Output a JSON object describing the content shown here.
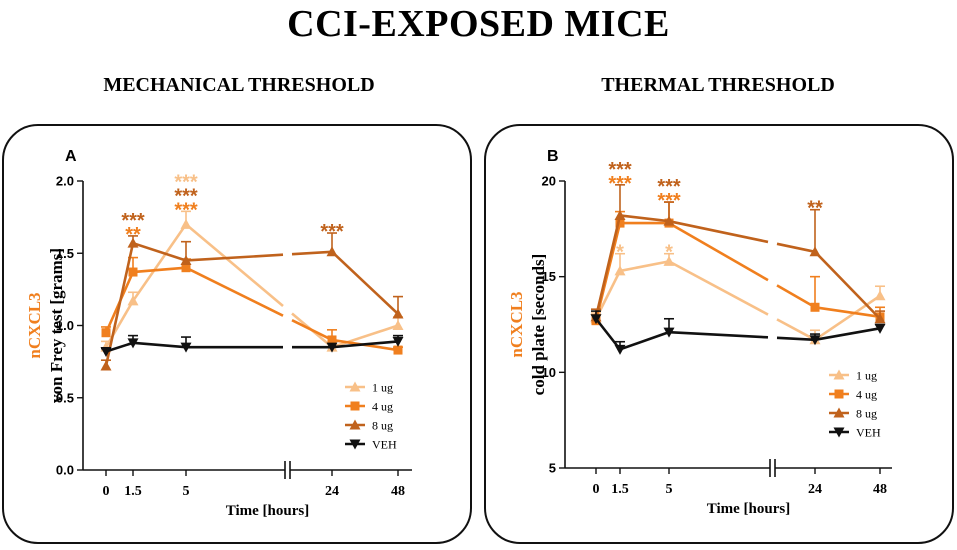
{
  "title": "CCI-EXPOSED MICE",
  "section_titles": [
    "MECHANICAL THRESHOLD",
    "THERMAL THRESHOLD"
  ],
  "colors": {
    "1 ug": "#f8c088",
    "4 ug": "#f07f1e",
    "8 ug": "#c0621c",
    "VEH": "#111111",
    "frame": "#111111"
  },
  "chart_data": [
    {
      "type": "line",
      "panel_label": "A",
      "title": "MECHANICAL THRESHOLD",
      "xlabel": "Time [hours]",
      "ylabel_prefix": "nCXCL3",
      "ylabel": "von Frey test [grams]",
      "ylim": [
        0,
        2
      ],
      "yticks": [
        "0.0",
        "0.5",
        "1.0",
        "1.5",
        "2.0"
      ],
      "x_categories": [
        "0",
        "1.5",
        "5",
        "24",
        "48"
      ],
      "series": [
        {
          "name": "1 ug",
          "marker": "triangle-up",
          "values": [
            0.85,
            1.17,
            1.7,
            0.85,
            1.0
          ],
          "errors": [
            0.04,
            0.06,
            0.09,
            0.03,
            0.06
          ]
        },
        {
          "name": "4 ug",
          "marker": "square",
          "values": [
            0.95,
            1.37,
            1.4,
            0.9,
            0.83
          ],
          "errors": [
            0.04,
            0.1,
            0.06,
            0.07,
            0.02
          ]
        },
        {
          "name": "8 ug",
          "marker": "triangle-up",
          "values": [
            0.72,
            1.57,
            1.45,
            1.51,
            1.08
          ],
          "errors": [
            0.04,
            0.05,
            0.13,
            0.13,
            0.12
          ]
        },
        {
          "name": "VEH",
          "marker": "triangle-down",
          "values": [
            0.82,
            0.88,
            0.85,
            0.85,
            0.89
          ],
          "errors": [
            0.02,
            0.05,
            0.07,
            0.0,
            0.04
          ]
        }
      ],
      "annotations": [
        {
          "x": "1.5",
          "lines": [
            {
              "text": "***",
              "series": "8 ug"
            },
            {
              "text": "**",
              "series": "4 ug"
            }
          ]
        },
        {
          "x": "5",
          "lines": [
            {
              "text": "***",
              "series": "1 ug"
            },
            {
              "text": "***",
              "series": "8 ug"
            },
            {
              "text": "***",
              "series": "4 ug"
            }
          ]
        },
        {
          "x": "24",
          "lines": [
            {
              "text": "***",
              "series": "8 ug"
            }
          ]
        }
      ]
    },
    {
      "type": "line",
      "panel_label": "B",
      "title": "THERMAL THRESHOLD",
      "xlabel": "Time [hours]",
      "ylabel_prefix": "nCXCL3",
      "ylabel": "cold plate [seconds]",
      "ylim": [
        5,
        20
      ],
      "yticks": [
        "5",
        "10",
        "15",
        "20"
      ],
      "x_categories": [
        "0",
        "1.5",
        "5",
        "24",
        "48"
      ],
      "series": [
        {
          "name": "1 ug",
          "marker": "triangle-up",
          "values": [
            12.8,
            15.3,
            15.8,
            11.7,
            14.0
          ],
          "errors": [
            0.3,
            0.9,
            0.4,
            0.5,
            0.5
          ]
        },
        {
          "name": "4 ug",
          "marker": "square",
          "values": [
            12.7,
            17.8,
            17.8,
            13.4,
            12.9
          ],
          "errors": [
            0.3,
            0.6,
            1.1,
            1.6,
            0.5
          ]
        },
        {
          "name": "8 ug",
          "marker": "triangle-up",
          "values": [
            12.9,
            18.2,
            17.9,
            16.3,
            12.8
          ],
          "errors": [
            0.4,
            1.6,
            1.0,
            2.2,
            0.4
          ]
        },
        {
          "name": "VEH",
          "marker": "triangle-down",
          "values": [
            12.8,
            11.2,
            12.1,
            11.7,
            12.3
          ],
          "errors": [
            0.4,
            0.4,
            0.7,
            0.3,
            0.2
          ]
        }
      ],
      "annotations": [
        {
          "x": "1.5",
          "lines": [
            {
              "text": "***",
              "series": "8 ug"
            },
            {
              "text": "***",
              "series": "4 ug"
            }
          ]
        },
        {
          "x": "1.5",
          "lines": [
            {
              "text": "*",
              "series": "1 ug"
            }
          ],
          "near": "1 ug"
        },
        {
          "x": "5",
          "lines": [
            {
              "text": "***",
              "series": "8 ug"
            },
            {
              "text": "***",
              "series": "4 ug"
            }
          ]
        },
        {
          "x": "5",
          "lines": [
            {
              "text": "*",
              "series": "1 ug"
            }
          ],
          "near": "1 ug"
        },
        {
          "x": "24",
          "lines": [
            {
              "text": "**",
              "series": "8 ug"
            }
          ]
        }
      ]
    }
  ]
}
